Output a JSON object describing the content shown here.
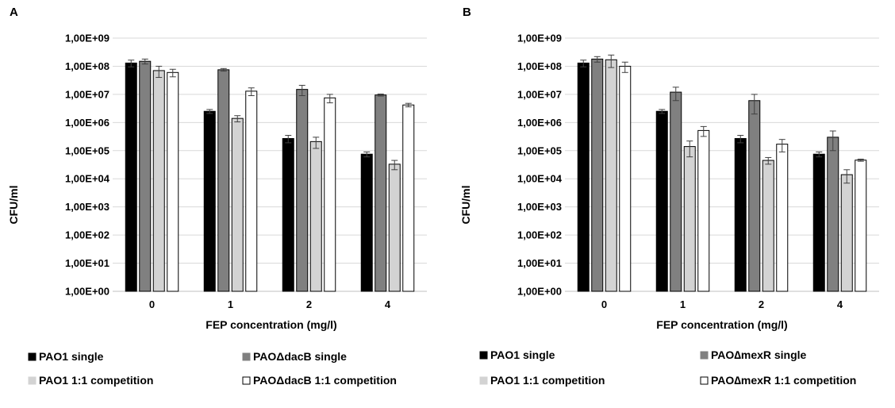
{
  "panels": [
    {
      "panel_label": "A",
      "chart_data": {
        "type": "bar",
        "categories": [
          "0",
          "1",
          "2",
          "4"
        ],
        "xlabel": "FEP concentration (mg/l)",
        "ylabel": "CFU/ml",
        "yscale": "log",
        "ylim": [
          1,
          1000000000
        ],
        "ytick_labels": [
          "1,00E+00",
          "1,00E+01",
          "1,00E+02",
          "1,00E+03",
          "1,00E+04",
          "1,00E+05",
          "1,00E+06",
          "1,00E+07",
          "1,00E+08",
          "1,00E+09"
        ],
        "grid": true,
        "legend_placement": "bottom",
        "series": [
          {
            "name": "PAO1 single",
            "color": "#000000",
            "values": [
              130000000,
              2500000,
              270000,
              75000
            ],
            "errors": [
              35000000,
              400000,
              80000,
              15000
            ]
          },
          {
            "name": "PAOΔdacB single",
            "color": "#808080",
            "values": [
              150000000,
              75000000,
              15000000,
              9500000
            ],
            "errors": [
              30000000,
              8000000,
              6000000,
              800000
            ]
          },
          {
            "name": "PAO1 1:1 competition",
            "color": "#d3d3d3",
            "values": [
              70000000,
              1400000,
              210000,
              33000
            ],
            "errors": [
              30000000,
              350000,
              90000,
              12000
            ]
          },
          {
            "name": "PAOΔdacB 1:1 competition",
            "color": "#ffffff",
            "values": [
              60000000,
              13000000,
              7500000,
              4200000
            ],
            "errors": [
              18000000,
              4000000,
              2500000,
              600000
            ]
          }
        ]
      }
    },
    {
      "panel_label": "B",
      "chart_data": {
        "type": "bar",
        "categories": [
          "0",
          "1",
          "2",
          "4"
        ],
        "xlabel": "FEP concentration (mg/l)",
        "ylabel": "CFU/ml",
        "yscale": "log",
        "ylim": [
          1,
          1000000000
        ],
        "ytick_labels": [
          "1,00E+00",
          "1,00E+01",
          "1,00E+02",
          "1,00E+03",
          "1,00E+04",
          "1,00E+05",
          "1,00E+06",
          "1,00E+07",
          "1,00E+08",
          "1,00E+09"
        ],
        "grid": true,
        "legend_placement": "bottom",
        "series": [
          {
            "name": "PAO1 single",
            "color": "#000000",
            "values": [
              130000000,
              2500000,
              270000,
              75000
            ],
            "errors": [
              35000000,
              400000,
              80000,
              15000
            ]
          },
          {
            "name": "PAO∆mexR single",
            "color": "#808080",
            "values": [
              180000000,
              12000000,
              6000000,
              300000
            ],
            "errors": [
              40000000,
              6000000,
              4000000,
              200000
            ]
          },
          {
            "name": "PAO1 1:1 competition",
            "color": "#d3d3d3",
            "values": [
              170000000,
              140000,
              45000,
              14000
            ],
            "errors": [
              80000000,
              80000,
              12000,
              7000
            ]
          },
          {
            "name": "PAO∆mexR 1:1 competition",
            "color": "#ffffff",
            "values": [
              100000000,
              520000,
              170000,
              46000
            ],
            "errors": [
              40000000,
              200000,
              80000,
              4000
            ]
          }
        ]
      }
    }
  ]
}
